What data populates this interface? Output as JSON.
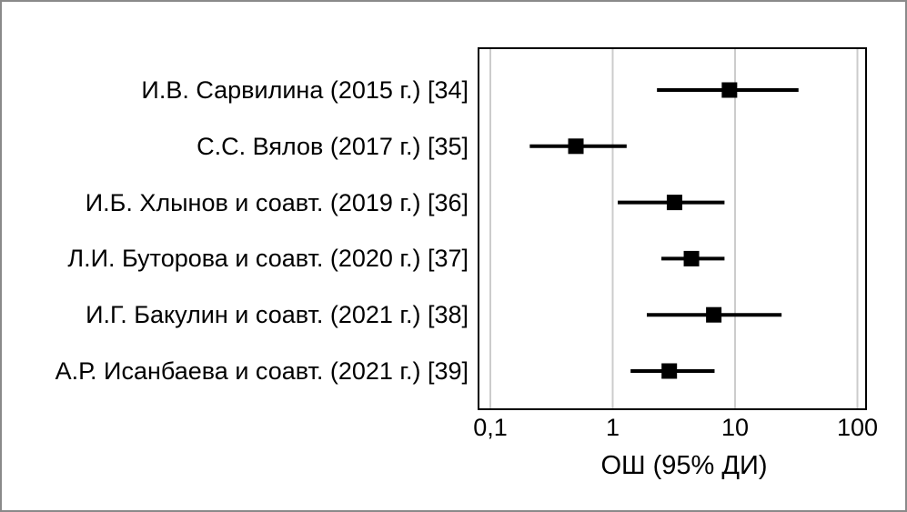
{
  "chart_data": {
    "type": "forest",
    "scale": "log",
    "title": "",
    "xlabel": "ОШ (95% ДИ)",
    "x_range": [
      0.08,
      118
    ],
    "grid": true,
    "x_ticks": [
      {
        "label": "0,1",
        "value": 0.1
      },
      {
        "label": "1",
        "value": 1
      },
      {
        "label": "10",
        "value": 10
      },
      {
        "label": "100",
        "value": 100
      }
    ],
    "studies": [
      {
        "label": "И.В. Сарвилина (2015 г.) [34]",
        "or": 9.0,
        "ci_low": 2.3,
        "ci_high": 33
      },
      {
        "label": "С.С. Вялов (2017 г.) [35]",
        "or": 0.5,
        "ci_low": 0.21,
        "ci_high": 1.3
      },
      {
        "label": "И.Б. Хлынов и соавт. (2019 г.) [36]",
        "or": 3.2,
        "ci_low": 1.1,
        "ci_high": 8.2
      },
      {
        "label": "Л.И. Буторова и соавт. (2020 г.) [37]",
        "or": 4.4,
        "ci_low": 2.5,
        "ci_high": 8.2
      },
      {
        "label": "И.Г. Бакулин и соавт. (2021 г.) [38]",
        "or": 6.7,
        "ci_low": 1.9,
        "ci_high": 24
      },
      {
        "label": "А.Р. Исанбаева и соавт. (2021 г.) [39]",
        "or": 2.9,
        "ci_low": 1.4,
        "ci_high": 6.8
      }
    ],
    "colors": {
      "marker": "#000000",
      "ci_line": "#000000",
      "frame": "#000000",
      "gridline": "#cccccc",
      "text": "#000000",
      "background": "#ffffff",
      "canvas_border": "#8a8a8a"
    }
  }
}
